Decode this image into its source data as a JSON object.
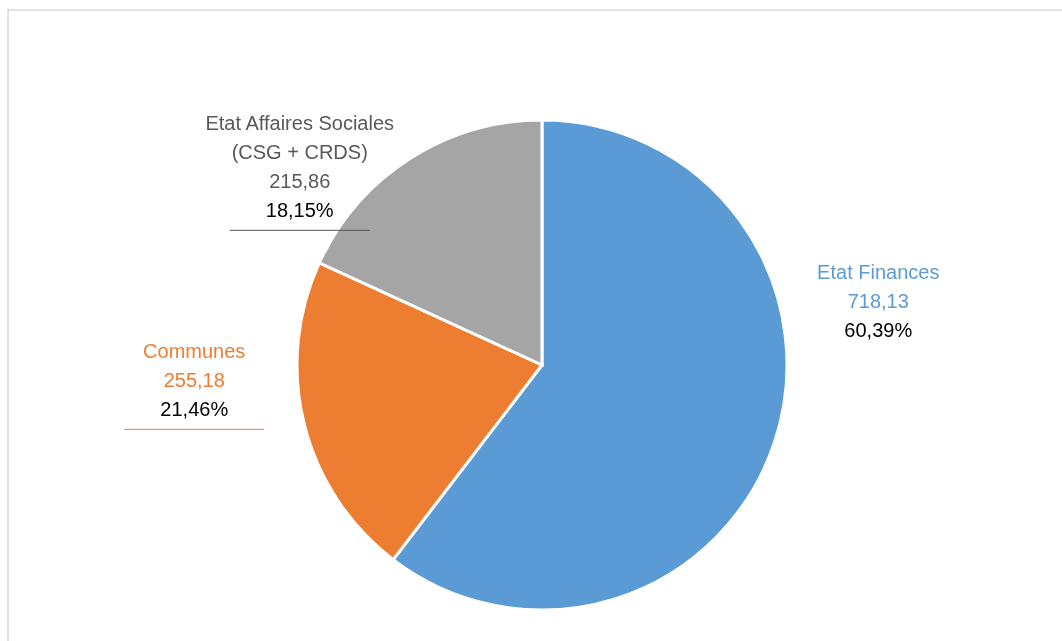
{
  "chart_data": {
    "type": "pie",
    "categories": [
      "Etat Finances",
      "Communes",
      "Etat Affaires Sociales (CSG + CRDS)"
    ],
    "values": [
      718.13,
      255.18,
      215.86
    ],
    "colors": [
      "#5b9bd5",
      "#ed7d31",
      "#a5a5a5"
    ],
    "value_labels": [
      "718,13\n60,39%",
      "255,18\n21,46%",
      "215,86\n18,15%"
    ]
  }
}
